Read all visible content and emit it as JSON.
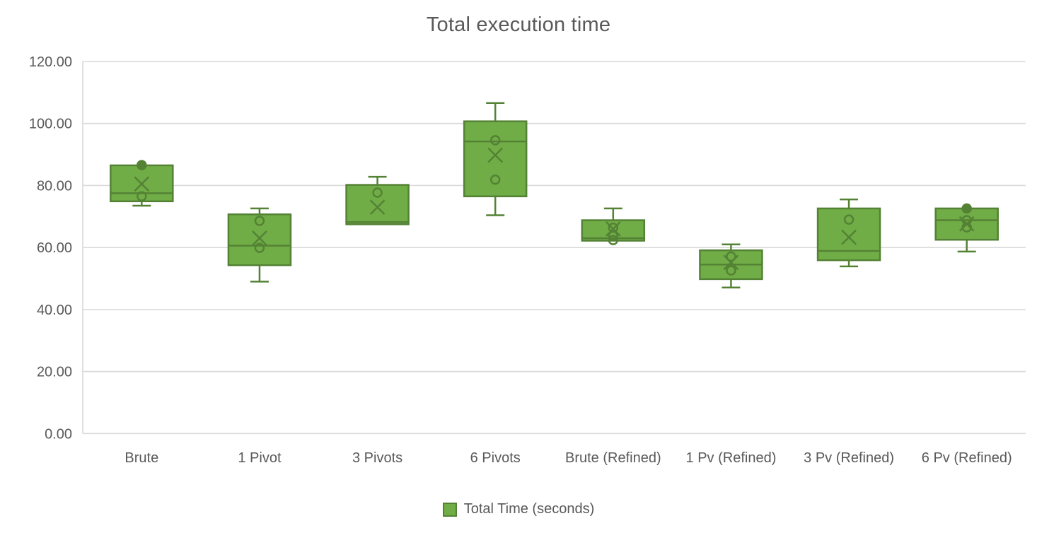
{
  "chart_data": {
    "type": "boxplot",
    "title": "Total execution time",
    "xlabel": "",
    "ylabel": "",
    "ylim": [
      0,
      120
    ],
    "ytick_step": 20,
    "ytick_decimals": 2,
    "grid": true,
    "legend_position": "bottom",
    "legend": {
      "label": "Total Time (seconds)",
      "swatch": "legend-color-swatch"
    },
    "colors": {
      "box_fill": "#71AD47",
      "box_stroke": "#548235",
      "grid": "#D9D9D9",
      "axis": "#D9D9D9",
      "text": "#595959"
    },
    "categories": [
      "Brute",
      "1 Pivot",
      "3 Pivots",
      "6 Pivots",
      "Brute (Refined)",
      "1 Pv (Refined)",
      "3 Pv (Refined)",
      "6 Pv (Refined)"
    ],
    "series": [
      {
        "category": "Brute",
        "min": 73.5,
        "q1": 74.9,
        "median": 77.5,
        "q3": 86.5,
        "max": 86.5,
        "mean": 80.5,
        "points": [
          {
            "value": 86.6,
            "filled": true
          },
          {
            "value": 76.5,
            "filled": false
          }
        ]
      },
      {
        "category": "1 Pivot",
        "min": 49.0,
        "q1": 54.3,
        "median": 60.6,
        "q3": 70.7,
        "max": 72.6,
        "mean": 63.0,
        "points": [
          {
            "value": 68.6,
            "filled": false
          },
          {
            "value": 59.9,
            "filled": false
          }
        ]
      },
      {
        "category": "3 Pivots",
        "min": 67.5,
        "q1": 67.5,
        "median": 68.2,
        "q3": 80.2,
        "max": 82.8,
        "mean": 73.0,
        "points": [
          {
            "value": 77.7,
            "filled": false
          }
        ]
      },
      {
        "category": "6 Pivots",
        "min": 70.4,
        "q1": 76.5,
        "median": 94.2,
        "q3": 100.7,
        "max": 106.6,
        "mean": 89.8,
        "points": [
          {
            "value": 94.6,
            "filled": false
          },
          {
            "value": 81.9,
            "filled": false
          }
        ]
      },
      {
        "category": "Brute (Refined)",
        "min": 62.2,
        "q1": 62.2,
        "median": 63.0,
        "q3": 68.8,
        "max": 72.6,
        "mean": 66.0,
        "points": [
          {
            "value": 66.4,
            "filled": false
          },
          {
            "value": 63.8,
            "filled": false
          },
          {
            "value": 62.4,
            "filled": false
          }
        ]
      },
      {
        "category": "1 Pv (Refined)",
        "min": 47.1,
        "q1": 49.8,
        "median": 54.5,
        "q3": 59.1,
        "max": 61.0,
        "mean": 55.2,
        "points": [
          {
            "value": 57.1,
            "filled": false
          },
          {
            "value": 52.6,
            "filled": false
          }
        ]
      },
      {
        "category": "3 Pv (Refined)",
        "min": 53.9,
        "q1": 55.9,
        "median": 58.9,
        "q3": 72.6,
        "max": 75.5,
        "mean": 63.3,
        "points": [
          {
            "value": 69.0,
            "filled": false
          }
        ]
      },
      {
        "category": "6 Pv (Refined)",
        "min": 58.7,
        "q1": 62.5,
        "median": 68.8,
        "q3": 72.6,
        "max": 72.6,
        "mean": 67.6,
        "points": [
          {
            "value": 72.6,
            "filled": true
          },
          {
            "value": 68.8,
            "filled": false
          },
          {
            "value": 66.5,
            "filled": false
          }
        ]
      }
    ]
  }
}
